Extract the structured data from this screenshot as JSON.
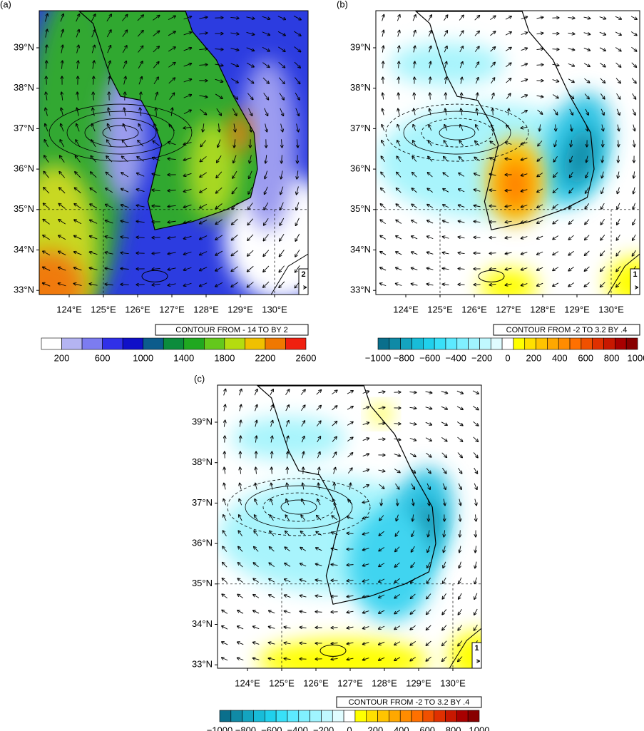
{
  "panels": [
    {
      "label": "(a)",
      "lat_labels": [
        "39°N",
        "38°N",
        "37°N",
        "36°N",
        "35°N",
        "34°N",
        "33°N"
      ],
      "lon_labels": [
        "124°E",
        "125°E",
        "126°E",
        "127°E",
        "128°E",
        "129°E",
        "130°E"
      ],
      "contour_note": "CONTOUR FROM - 14 TO BY 2",
      "colorbar_labels": [
        "200",
        "600",
        "1000",
        "1400",
        "1800",
        "2200",
        "2600"
      ],
      "colorbar_colors": [
        "#ffffff",
        "#b4b4f2",
        "#7c7cf0",
        "#3030e8",
        "#1010c8",
        "#0c5c8c",
        "#0c8c3c",
        "#20a820",
        "#64c81c",
        "#b4dc10",
        "#f0c000",
        "#f07800",
        "#f02010"
      ],
      "vector_ref": "2"
    },
    {
      "label": "(b)",
      "lat_labels": [
        "39°N",
        "38°N",
        "37°N",
        "36°N",
        "35°N",
        "34°N",
        "33°N"
      ],
      "lon_labels": [
        "124°E",
        "125°E",
        "126°E",
        "127°E",
        "128°E",
        "129°E",
        "130°E"
      ],
      "contour_note": "CONTOUR FROM -2 TO 3.2 BY .4",
      "colorbar_labels": [
        "−1000",
        "−800",
        "−600",
        "−400",
        "−200",
        "0",
        "200",
        "400",
        "600",
        "800",
        "1000"
      ],
      "colorbar_colors": [
        "#0a6f8c",
        "#108aa6",
        "#14a4c0",
        "#18bcd8",
        "#20d0ec",
        "#38e0f8",
        "#5ceaff",
        "#80f0ff",
        "#a0f4ff",
        "#c0f8ff",
        "#e0fcff",
        "#ffffff",
        "#ffff00",
        "#ffe000",
        "#ffc400",
        "#ffa800",
        "#ff8c00",
        "#ff7000",
        "#f05000",
        "#e03000",
        "#c81800",
        "#a80000",
        "#880000"
      ],
      "vector_ref": "1"
    },
    {
      "label": "(c)",
      "lat_labels": [
        "39°N",
        "38°N",
        "37°N",
        "36°N",
        "35°N",
        "34°N",
        "33°N"
      ],
      "lon_labels": [
        "124°E",
        "125°E",
        "126°E",
        "127°E",
        "128°E",
        "129°E",
        "130°E"
      ],
      "contour_note": "CONTOUR FROM -2 TO 3.2 BY .4",
      "colorbar_labels": [
        "−1000",
        "−800",
        "−600",
        "−400",
        "−200",
        "0",
        "200",
        "400",
        "600",
        "800",
        "1000"
      ],
      "colorbar_colors": [
        "#0a6f8c",
        "#108aa6",
        "#14a4c0",
        "#18bcd8",
        "#20d0ec",
        "#38e0f8",
        "#5ceaff",
        "#80f0ff",
        "#a0f4ff",
        "#c0f8ff",
        "#e0fcff",
        "#ffffff",
        "#ffff00",
        "#ffe000",
        "#ffc400",
        "#ffa800",
        "#ff8c00",
        "#ff7000",
        "#f05000",
        "#e03000",
        "#c81800",
        "#a80000",
        "#880000"
      ],
      "vector_ref": "1"
    }
  ]
}
